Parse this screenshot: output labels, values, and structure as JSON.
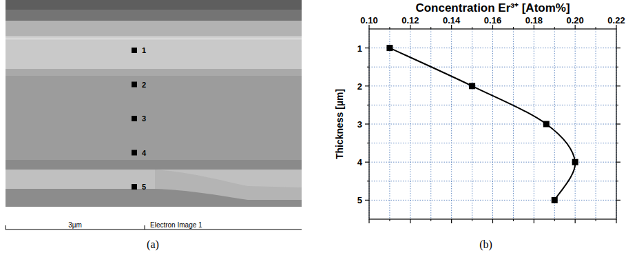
{
  "image": {
    "panel_label": "(a)",
    "points": [
      "1",
      "2",
      "3",
      "4",
      "5"
    ],
    "scale_bar": "3µm",
    "caption": "Electron Image 1"
  },
  "chart_data": {
    "type": "line",
    "panel_label": "(b)",
    "x_label": "Concentration Er³⁺ [Atom%]",
    "y_label": "Thickness [µm]",
    "x": [
      0.11,
      0.15,
      0.186,
      0.2,
      0.19
    ],
    "values": [
      1,
      2,
      3,
      4,
      5
    ],
    "color": "#000000",
    "marker": "square",
    "line_style": "solid",
    "xlim": [
      0.1,
      0.22
    ],
    "xticks": [
      {
        "value": 0.1,
        "label": "0.10"
      },
      0.12,
      0.14,
      0.16,
      0.18,
      {
        "value": 0.2,
        "label": "0.20"
      },
      0.22
    ],
    "ylim": [
      5.5,
      0.5
    ],
    "yticks": [
      1,
      2,
      3,
      4,
      5
    ],
    "grid": true
  }
}
